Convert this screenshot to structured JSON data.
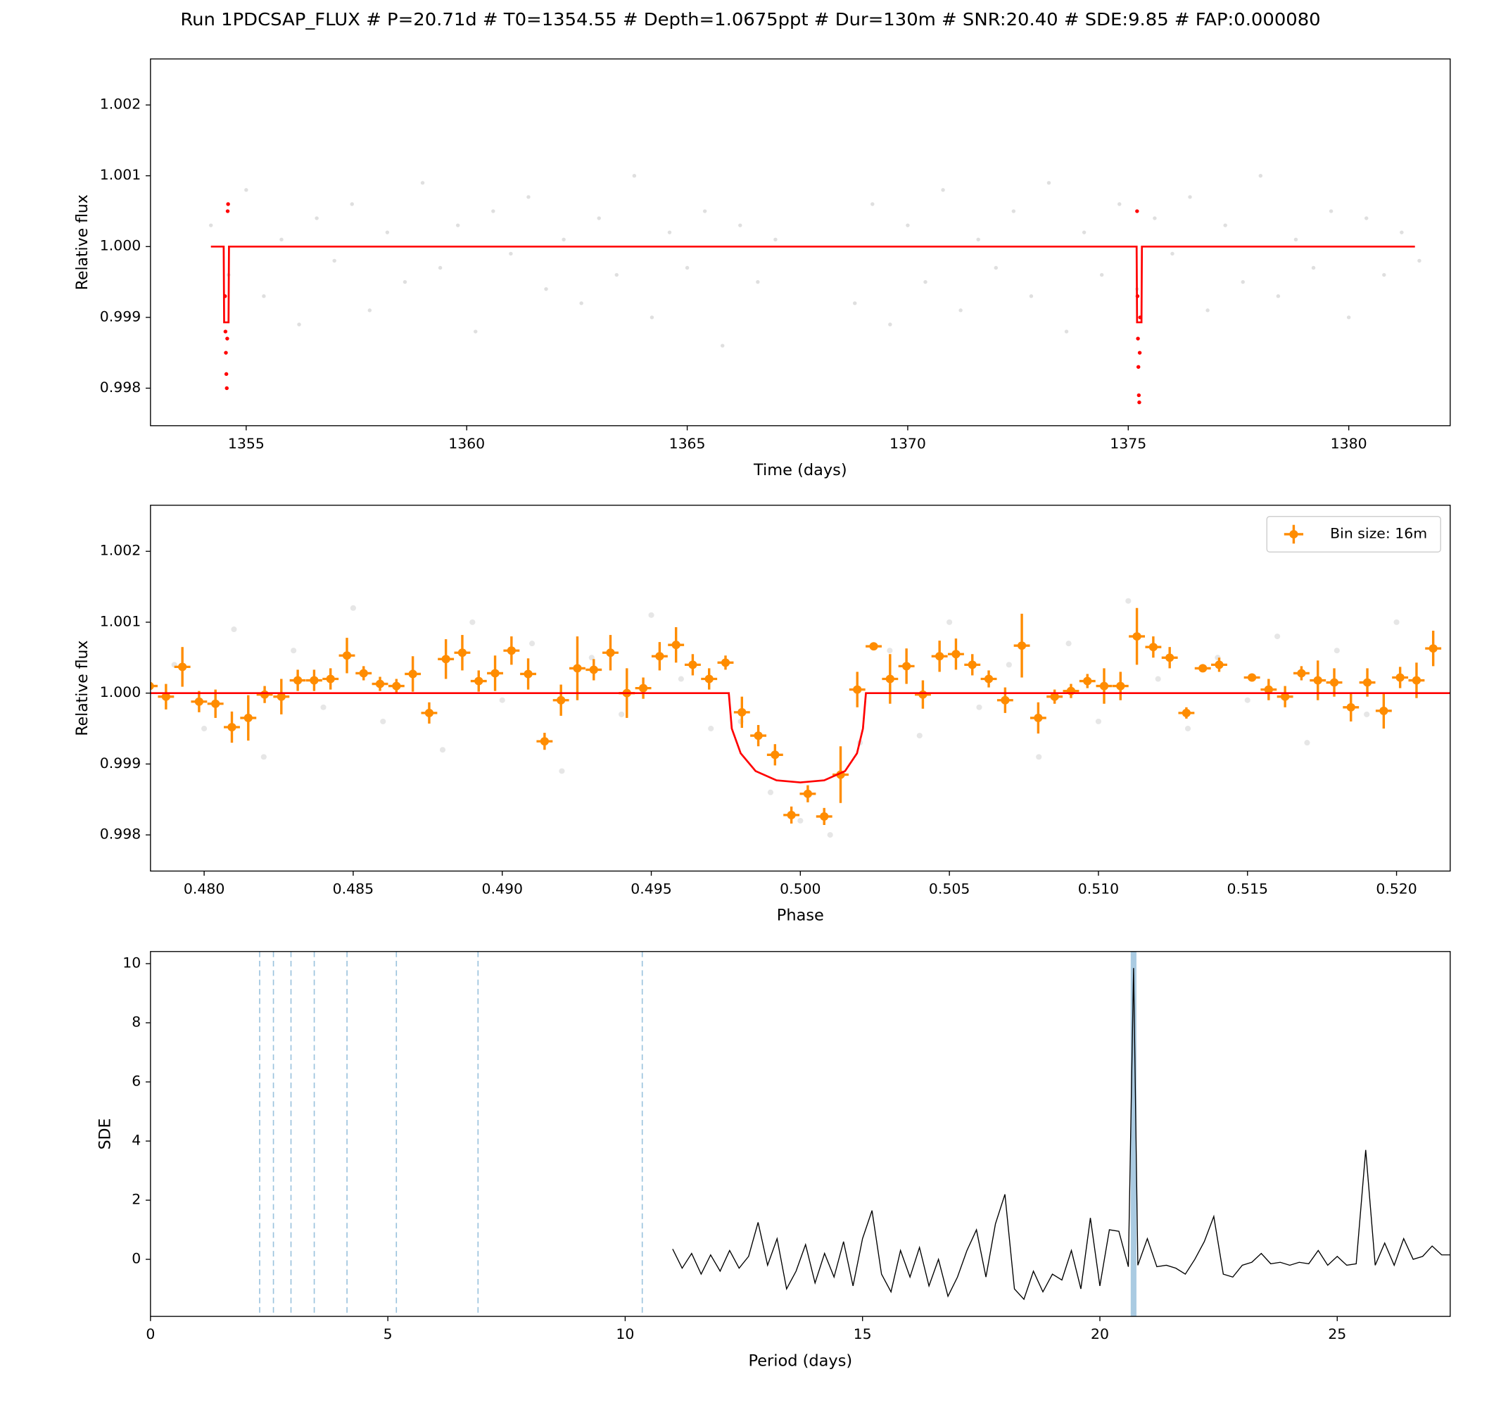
{
  "chart_data": [
    {
      "type": "scatter",
      "title": "Run 1PDCSAP_FLUX # P=20.71d # T0=1354.55 # Depth=1.0675ppt # Dur=130m # SNR:20.40 # SDE:9.85 # FAP:0.000080",
      "xlabel": "Time (days)",
      "ylabel": "Relative flux",
      "xlim": [
        1352.83,
        1382.3
      ],
      "ylim": [
        0.99747,
        1.00265
      ],
      "xticks": [
        1355,
        1360,
        1365,
        1370,
        1375,
        1380
      ],
      "yticks": [
        0.998,
        0.999,
        {
          "value": 1.0,
          "label": "1.000"
        },
        1.001,
        1.002
      ],
      "series": [
        {
          "style": "points",
          "color": "#808080",
          "alpha": 0.25,
          "x": [
            1354.2,
            1354.6,
            1355.0,
            1355.4,
            1355.8,
            1356.2,
            1356.6,
            1357.0,
            1357.4,
            1357.8,
            1358.2,
            1358.6,
            1359.0,
            1359.4,
            1359.8,
            1360.2,
            1360.6,
            1361.0,
            1361.4,
            1361.8,
            1362.2,
            1362.6,
            1363.0,
            1363.4,
            1363.8,
            1364.2,
            1364.6,
            1365.0,
            1365.4,
            1365.8,
            1366.2,
            1366.6,
            1367.0,
            1368.8,
            1369.2,
            1369.6,
            1370.0,
            1370.4,
            1370.8,
            1371.2,
            1371.6,
            1372.0,
            1372.4,
            1372.8,
            1373.2,
            1373.6,
            1374.0,
            1374.4,
            1374.8,
            1375.2,
            1375.6,
            1376.0,
            1376.4,
            1376.8,
            1377.2,
            1377.6,
            1378.0,
            1378.4,
            1378.8,
            1379.2,
            1379.6,
            1380.0,
            1380.4,
            1380.8,
            1381.2,
            1381.6
          ],
          "values": [
            1.0003,
            0.9996,
            1.0008,
            0.9993,
            1.0001,
            0.9989,
            1.0004,
            0.9998,
            1.0006,
            0.9991,
            1.0002,
            0.9995,
            1.0009,
            0.9997,
            1.0003,
            0.9988,
            1.0005,
            0.9999,
            1.0007,
            0.9994,
            1.0001,
            0.9992,
            1.0004,
            0.9996,
            1.001,
            0.999,
            1.0002,
            0.9997,
            1.0005,
            0.9986,
            1.0003,
            0.9995,
            1.0001,
            0.9992,
            1.0006,
            0.9989,
            1.0003,
            0.9995,
            1.0008,
            0.9991,
            1.0001,
            0.9997,
            1.0005,
            0.9993,
            1.0009,
            0.9988,
            1.0002,
            0.9996,
            1.0006,
            0.9994,
            1.0004,
            0.9999,
            1.0007,
            0.9991,
            1.0003,
            0.9995,
            1.001,
            0.9993,
            1.0001,
            0.9997,
            1.0005,
            0.999,
            1.0004,
            0.9996,
            1.0002,
            0.9998
          ]
        },
        {
          "style": "points",
          "color": "#ff0000",
          "alpha": 1,
          "x": [
            1354.52,
            1354.53,
            1354.54,
            1354.55,
            1354.56,
            1354.57,
            1354.58,
            1354.59,
            1375.2,
            1375.21,
            1375.22,
            1375.23,
            1375.24,
            1375.25,
            1375.26,
            1375.27
          ],
          "values": [
            0.9993,
            0.9988,
            0.9985,
            0.9982,
            0.998,
            0.9987,
            1.0005,
            1.0006,
            1.0005,
            0.9993,
            0.9987,
            0.9983,
            0.9979,
            0.9978,
            0.9985,
            0.999
          ]
        },
        {
          "style": "line",
          "color": "#ff0000",
          "alpha": 1,
          "x": [
            1354.2,
            1354.49,
            1354.5,
            1354.6,
            1354.61,
            1375.19,
            1375.2,
            1375.3,
            1375.31,
            1381.5
          ],
          "values": [
            1,
            1,
            0.99893,
            0.99893,
            1,
            1,
            0.99893,
            0.99893,
            1,
            1
          ]
        }
      ]
    },
    {
      "type": "scatter",
      "xlabel": "Phase",
      "ylabel": "Relative flux",
      "xlim": [
        0.4782,
        0.5218
      ],
      "ylim": [
        0.99749,
        1.00265
      ],
      "xticks": [
        {
          "value": 0.48,
          "label": "0.480"
        },
        {
          "value": 0.485,
          "label": "0.485"
        },
        {
          "value": 0.49,
          "label": "0.490"
        },
        {
          "value": 0.495,
          "label": "0.495"
        },
        {
          "value": 0.5,
          "label": "0.500"
        },
        {
          "value": 0.505,
          "label": "0.505"
        },
        {
          "value": 0.51,
          "label": "0.510"
        },
        {
          "value": 0.515,
          "label": "0.515"
        },
        {
          "value": 0.52,
          "label": "0.520"
        }
      ],
      "yticks": [
        0.998,
        0.999,
        {
          "value": 1.0,
          "label": "1.000"
        },
        1.001,
        1.002
      ],
      "legend": "upper right",
      "series": [
        {
          "style": "points",
          "color": "#808080",
          "alpha": 0.2,
          "x": [
            0.479,
            0.48,
            0.481,
            0.482,
            0.483,
            0.484,
            0.485,
            0.486,
            0.487,
            0.488,
            0.489,
            0.49,
            0.491,
            0.492,
            0.493,
            0.494,
            0.495,
            0.496,
            0.497,
            0.498,
            0.499,
            0.5,
            0.501,
            0.502,
            0.503,
            0.504,
            0.505,
            0.506,
            0.507,
            0.508,
            0.509,
            0.51,
            0.511,
            0.512,
            0.513,
            0.514,
            0.515,
            0.516,
            0.517,
            0.518,
            0.519,
            0.52
          ],
          "values": [
            1.0004,
            0.9995,
            1.0009,
            0.9991,
            1.0006,
            0.9998,
            1.0012,
            0.9996,
            1.0003,
            0.9992,
            1.001,
            0.9999,
            1.0007,
            0.9989,
            1.0005,
            0.9997,
            1.0011,
            1.0002,
            0.9995,
            0.9996,
            0.9986,
            0.9982,
            0.998,
            0.9993,
            1.0006,
            0.9994,
            1.001,
            0.9998,
            1.0004,
            0.9991,
            1.0007,
            0.9996,
            1.0013,
            1.0002,
            0.9995,
            1.0005,
            0.9999,
            1.0008,
            0.9993,
            1.0006,
            0.9997,
            1.001
          ]
        },
        {
          "style": "errorbar",
          "name": "Bin size: 16m",
          "color": "#ff8c00",
          "alpha": 1,
          "xerr": 0.00027,
          "x": [
            0.47817,
            0.47872,
            0.47927,
            0.47983,
            0.48038,
            0.48093,
            0.48148,
            0.48203,
            0.48259,
            0.48314,
            0.48369,
            0.48424,
            0.48479,
            0.48535,
            0.4859,
            0.48645,
            0.487,
            0.48755,
            0.48811,
            0.48866,
            0.48921,
            0.48976,
            0.49031,
            0.49087,
            0.49142,
            0.49197,
            0.49252,
            0.49307,
            0.49363,
            0.49418,
            0.49473,
            0.49528,
            0.49583,
            0.49639,
            0.49694,
            0.49749,
            0.49804,
            0.49859,
            0.49915,
            0.4997,
            0.50025,
            0.5008,
            0.50135,
            0.50191,
            0.50246,
            0.50301,
            0.50356,
            0.50411,
            0.50467,
            0.50522,
            0.50577,
            0.50632,
            0.50687,
            0.50743,
            0.50798,
            0.50853,
            0.50908,
            0.50963,
            0.51019,
            0.51074,
            0.51129,
            0.51184,
            0.51239,
            0.51295,
            0.5135,
            0.51405,
            0.51515,
            0.51571,
            0.51626,
            0.51681,
            0.51736,
            0.51791,
            0.51847,
            0.51902,
            0.51957,
            0.52012,
            0.52067,
            0.52123
          ],
          "values": [
            1.0001,
            0.99995,
            1.00037,
            0.99988,
            0.99985,
            0.99952,
            0.99965,
            0.99998,
            0.99995,
            1.00018,
            1.00018,
            1.0002,
            1.00053,
            1.00028,
            1.00013,
            1.0001,
            1.00027,
            0.99972,
            1.00048,
            1.00057,
            1.00017,
            1.00028,
            1.0006,
            1.00027,
            0.99932,
            0.9999,
            1.00035,
            1.00033,
            1.00057,
            1.0,
            1.00007,
            1.00052,
            1.00068,
            1.0004,
            1.0002,
            1.00043,
            0.99973,
            0.9994,
            0.99913,
            0.99828,
            0.99858,
            0.99826,
            0.99885,
            1.00005,
            1.00066,
            1.0002,
            1.00038,
            0.99998,
            1.00052,
            1.00055,
            1.0004,
            1.0002,
            0.9999,
            1.00067,
            0.99965,
            0.99995,
            1.00003,
            1.00017,
            1.0001,
            1.0001,
            1.0008,
            1.00065,
            1.0005,
            0.99972,
            1.00035,
            1.0004,
            1.00022,
            1.00005,
            0.99995,
            1.00028,
            1.00018,
            1.00015,
            0.9998,
            1.00015,
            0.99975,
            1.00022,
            1.00018,
            1.00063
          ],
          "errors": [
            0.00015,
            0.00018,
            0.00028,
            0.00015,
            0.0002,
            0.00022,
            0.00032,
            0.00012,
            0.00025,
            0.00015,
            0.00015,
            0.00015,
            0.00025,
            0.0001,
            0.0001,
            0.0001,
            0.00025,
            0.00015,
            0.00028,
            0.00025,
            0.00015,
            0.00025,
            0.0002,
            0.00022,
            0.00012,
            0.00022,
            0.00045,
            0.00015,
            0.00025,
            0.00035,
            0.00015,
            0.0002,
            0.00025,
            0.00015,
            0.00015,
            0.0001,
            0.00022,
            0.00015,
            0.00015,
            0.00012,
            0.00012,
            0.00012,
            0.0004,
            0.00025,
            5e-05,
            0.00035,
            0.00025,
            0.0002,
            0.00022,
            0.00022,
            0.00015,
            0.00012,
            0.00018,
            0.00045,
            0.00022,
            0.0001,
            0.0001,
            0.0001,
            0.00025,
            0.0002,
            0.0004,
            0.00015,
            0.00015,
            8e-05,
            5e-05,
            0.0001,
            3e-05,
            0.00015,
            0.00015,
            0.0001,
            0.00028,
            0.0002,
            0.0002,
            0.0002,
            0.00025,
            0.00015,
            0.00025,
            0.00025
          ]
        },
        {
          "style": "line",
          "color": "#ff0000",
          "alpha": 1,
          "x": [
            0.4782,
            0.4976,
            0.4977,
            0.498,
            0.4985,
            0.4992,
            0.5,
            0.5008,
            0.5015,
            0.5019,
            0.5021,
            0.5022,
            0.5218
          ],
          "values": [
            1,
            1,
            0.9995,
            0.99915,
            0.9989,
            0.99877,
            0.99874,
            0.99877,
            0.9989,
            0.99915,
            0.9995,
            1,
            1
          ]
        }
      ]
    },
    {
      "type": "line",
      "xlabel": "Period (days)",
      "ylabel": "SDE",
      "xlim": [
        0,
        27.38
      ],
      "ylim": [
        -1.93,
        10.41
      ],
      "xticks": [
        0,
        5,
        10,
        15,
        20,
        25
      ],
      "yticks": [
        0,
        2,
        4,
        6,
        8,
        10
      ],
      "harmonics": [
        2.3,
        2.59,
        2.96,
        3.45,
        4.14,
        5.18,
        6.9,
        10.36
      ],
      "harmonics_color": "#1f77b4",
      "period": 20.71,
      "period_color": "#1f77b4",
      "series": [
        {
          "style": "line",
          "color": "#000000",
          "alpha": 1,
          "width": 1,
          "x": [
            11.0,
            11.2,
            11.4,
            11.6,
            11.8,
            12.0,
            12.2,
            12.4,
            12.6,
            12.8,
            13.0,
            13.2,
            13.4,
            13.6,
            13.8,
            14.0,
            14.2,
            14.4,
            14.6,
            14.8,
            15.0,
            15.2,
            15.4,
            15.6,
            15.8,
            16.0,
            16.2,
            16.4,
            16.6,
            16.8,
            17.0,
            17.2,
            17.4,
            17.6,
            17.8,
            18.0,
            18.2,
            18.4,
            18.6,
            18.8,
            19.0,
            19.2,
            19.4,
            19.6,
            19.8,
            20.0,
            20.2,
            20.4,
            20.6,
            20.71,
            20.8,
            21.0,
            21.2,
            21.4,
            21.6,
            21.8,
            22.0,
            22.2,
            22.4,
            22.6,
            22.8,
            23.0,
            23.2,
            23.4,
            23.6,
            23.8,
            24.0,
            24.2,
            24.4,
            24.6,
            24.8,
            25.0,
            25.2,
            25.4,
            25.6,
            25.8,
            26.0,
            26.2,
            26.4,
            26.6,
            26.8,
            27.0,
            27.2,
            27.38
          ],
          "values": [
            0.35,
            -0.3,
            0.2,
            -0.5,
            0.15,
            -0.4,
            0.3,
            -0.3,
            0.1,
            1.25,
            -0.2,
            0.7,
            -1.0,
            -0.4,
            0.5,
            -0.8,
            0.2,
            -0.6,
            0.6,
            -0.9,
            0.7,
            1.65,
            -0.5,
            -1.1,
            0.3,
            -0.6,
            0.4,
            -0.9,
            0.0,
            -1.25,
            -0.6,
            0.3,
            1.0,
            -0.6,
            1.2,
            2.2,
            -1.0,
            -1.35,
            -0.4,
            -1.1,
            -0.5,
            -0.7,
            0.3,
            -1.0,
            1.4,
            -0.9,
            1.0,
            0.95,
            -0.25,
            9.85,
            -0.2,
            0.7,
            -0.25,
            -0.2,
            -0.3,
            -0.5,
            0.0,
            0.6,
            1.45,
            -0.5,
            -0.6,
            -0.2,
            -0.1,
            0.2,
            -0.15,
            -0.1,
            -0.2,
            -0.1,
            -0.15,
            0.3,
            -0.2,
            0.1,
            -0.2,
            -0.15,
            3.7,
            -0.2,
            0.55,
            -0.2,
            0.7,
            0.0,
            0.1,
            0.45,
            0.15,
            0.15
          ]
        }
      ]
    }
  ]
}
